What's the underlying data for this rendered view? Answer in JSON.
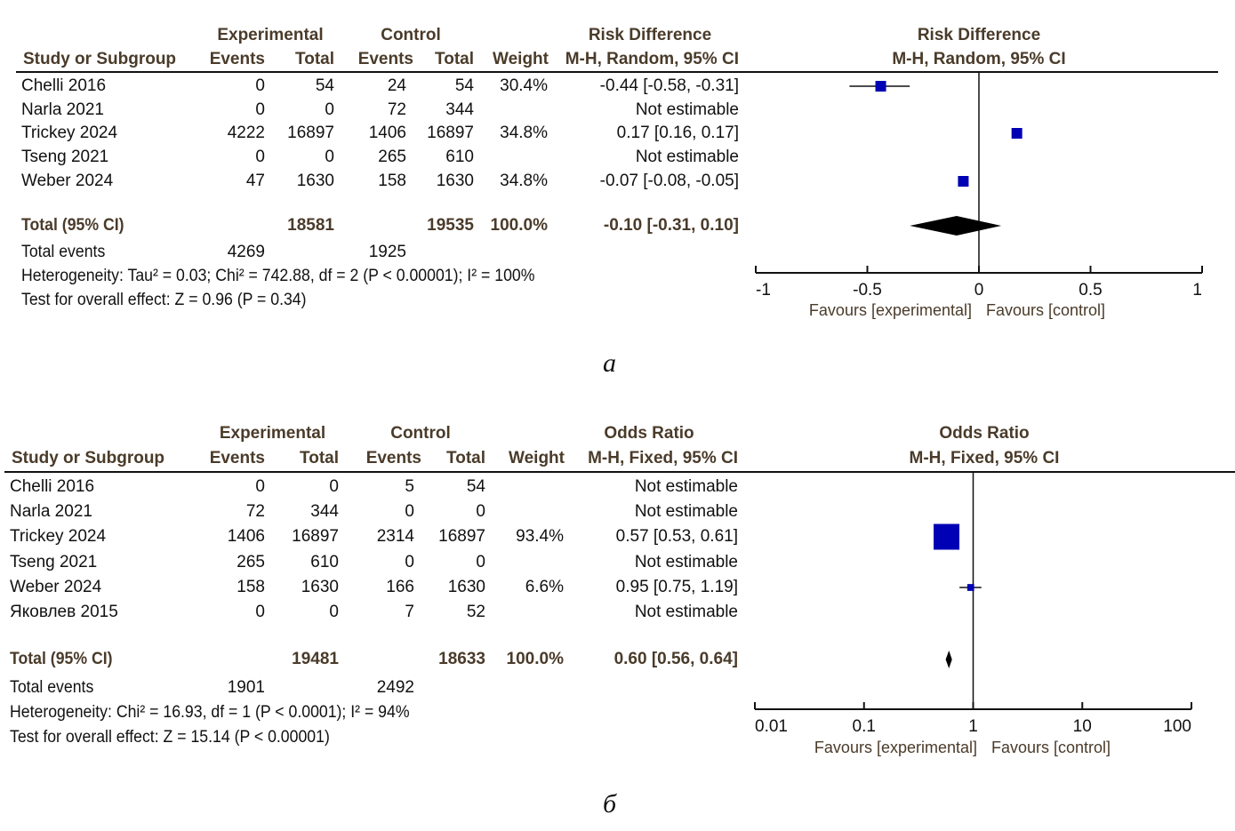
{
  "chart_data": [
    {
      "type": "forest",
      "panel_label": "а",
      "columns": {
        "study": "Study or Subgroup",
        "experimental_group": "Experimental",
        "control_group": "Control",
        "events": "Events",
        "total": "Total",
        "weight": "Weight",
        "effect_title": "Risk Difference",
        "effect_method": "M-H, Random, 95% CI"
      },
      "plot_title": "Risk Difference",
      "plot_method": "M-H, Random, 95% CI",
      "scale": "linear",
      "xlim": [
        -1,
        1
      ],
      "ticks": [
        -1,
        -0.5,
        0,
        0.5,
        1
      ],
      "tick_labels": [
        "-1",
        "-0.5",
        "0",
        "0.5",
        "1"
      ],
      "favours_left": "Favours [experimental]",
      "favours_right": "Favours [control]",
      "studies": [
        {
          "name": "Chelli 2016",
          "exp_events": "0",
          "exp_total": "54",
          "ctl_events": "24",
          "ctl_total": "54",
          "weight": "30.4%",
          "effect_text": "-0.44 [-0.58, -0.31]",
          "est": -0.44,
          "lo": -0.58,
          "hi": -0.31
        },
        {
          "name": "Narla 2021",
          "exp_events": "0",
          "exp_total": "0",
          "ctl_events": "72",
          "ctl_total": "344",
          "weight": "",
          "effect_text": "Not estimable",
          "est": null,
          "lo": null,
          "hi": null
        },
        {
          "name": "Trickey 2024",
          "exp_events": "4222",
          "exp_total": "16897",
          "ctl_events": "1406",
          "ctl_total": "16897",
          "weight": "34.8%",
          "effect_text": "0.17 [0.16, 0.17]",
          "est": 0.17,
          "lo": 0.16,
          "hi": 0.17
        },
        {
          "name": "Tseng 2021",
          "exp_events": "0",
          "exp_total": "0",
          "ctl_events": "265",
          "ctl_total": "610",
          "weight": "",
          "effect_text": "Not estimable",
          "est": null,
          "lo": null,
          "hi": null
        },
        {
          "name": "Weber 2024",
          "exp_events": "47",
          "exp_total": "1630",
          "ctl_events": "158",
          "ctl_total": "1630",
          "weight": "34.8%",
          "effect_text": "-0.07 [-0.08, -0.05]",
          "est": -0.07,
          "lo": -0.08,
          "hi": -0.05
        }
      ],
      "total": {
        "label": "Total (95% CI)",
        "exp_total": "18581",
        "ctl_total": "19535",
        "weight": "100.0%",
        "effect_text": "-0.10 [-0.31, 0.10]",
        "est": -0.1,
        "lo": -0.31,
        "hi": 0.1
      },
      "total_events": {
        "label": "Total events",
        "exp": "4269",
        "ctl": "1925"
      },
      "heterogeneity": "Heterogeneity: Tau² = 0.03; Chi² = 742.88, df = 2 (P < 0.00001); I² = 100%",
      "overall_effect": "Test for overall effect: Z = 0.96 (P = 0.34)"
    },
    {
      "type": "forest",
      "panel_label": "б",
      "columns": {
        "study": "Study or Subgroup",
        "experimental_group": "Experimental",
        "control_group": "Control",
        "events": "Events",
        "total": "Total",
        "weight": "Weight",
        "effect_title": "Odds Ratio",
        "effect_method": "M-H, Fixed, 95% CI"
      },
      "plot_title": "Odds Ratio",
      "plot_method": "M-H, Fixed, 95% CI",
      "scale": "log",
      "xlim": [
        0.01,
        100
      ],
      "ticks": [
        0.01,
        0.1,
        1,
        10,
        100
      ],
      "tick_labels": [
        "0.01",
        "0.1",
        "1",
        "10",
        "100"
      ],
      "favours_left": "Favours [experimental]",
      "favours_right": "Favours [control]",
      "studies": [
        {
          "name": "Chelli 2016",
          "exp_events": "0",
          "exp_total": "0",
          "ctl_events": "5",
          "ctl_total": "54",
          "weight": "",
          "effect_text": "Not estimable",
          "est": null,
          "lo": null,
          "hi": null
        },
        {
          "name": "Narla 2021",
          "exp_events": "72",
          "exp_total": "344",
          "ctl_events": "0",
          "ctl_total": "0",
          "weight": "",
          "effect_text": "Not estimable",
          "est": null,
          "lo": null,
          "hi": null
        },
        {
          "name": "Trickey 2024",
          "exp_events": "1406",
          "exp_total": "16897",
          "ctl_events": "2314",
          "ctl_total": "16897",
          "weight": "93.4%",
          "effect_text": "0.57 [0.53, 0.61]",
          "est": 0.57,
          "lo": 0.53,
          "hi": 0.61
        },
        {
          "name": "Tseng 2021",
          "exp_events": "265",
          "exp_total": "610",
          "ctl_events": "0",
          "ctl_total": "0",
          "weight": "",
          "effect_text": "Not estimable",
          "est": null,
          "lo": null,
          "hi": null
        },
        {
          "name": "Weber 2024",
          "exp_events": "158",
          "exp_total": "1630",
          "ctl_events": "166",
          "ctl_total": "1630",
          "weight": "6.6%",
          "effect_text": "0.95 [0.75, 1.19]",
          "est": 0.95,
          "lo": 0.75,
          "hi": 1.19
        },
        {
          "name": "Яковлев 2015",
          "exp_events": "0",
          "exp_total": "0",
          "ctl_events": "7",
          "ctl_total": "52",
          "weight": "",
          "effect_text": "Not estimable",
          "est": null,
          "lo": null,
          "hi": null
        }
      ],
      "total": {
        "label": "Total (95% CI)",
        "exp_total": "19481",
        "ctl_total": "18633",
        "weight": "100.0%",
        "effect_text": "0.60 [0.56, 0.64]",
        "est": 0.6,
        "lo": 0.56,
        "hi": 0.64
      },
      "total_events": {
        "label": "Total events",
        "exp": "1901",
        "ctl": "2492"
      },
      "heterogeneity": "Heterogeneity: Chi² = 16.93, df = 1 (P < 0.0001); I² = 94%",
      "overall_effect": "Test for overall effect: Z = 15.14 (P < 0.00001)"
    }
  ],
  "colors": {
    "square": "#0000b4",
    "diamond": "#000000",
    "header_text": "#4a3b2a"
  }
}
